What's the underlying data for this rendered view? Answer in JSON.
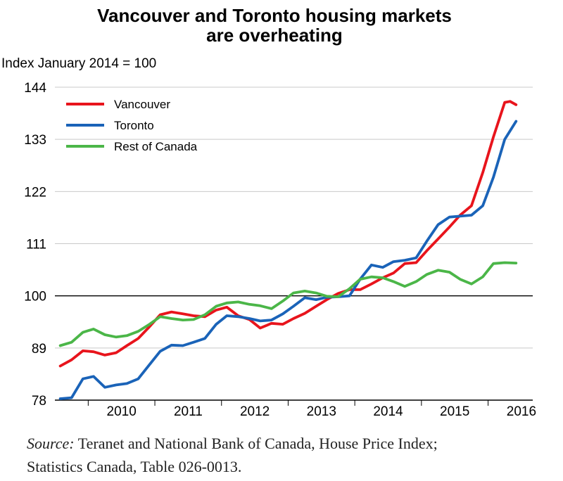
{
  "chart_data": {
    "type": "line",
    "title_line1": "Vancouver and Toronto housing markets",
    "title_line2": "are overheating",
    "ylabel": "Index January 2014 = 100",
    "xlabel": "",
    "ylim": [
      78,
      144
    ],
    "yticks": [
      "144",
      "133",
      "122",
      "111",
      "100",
      "89",
      "78"
    ],
    "xticks": [
      "2010",
      "2011",
      "2012",
      "2013",
      "2014",
      "2015",
      "2016"
    ],
    "grid": true,
    "reference_line": 100,
    "legend_position": "top-left",
    "series": [
      {
        "name": "Vancouver",
        "color": "#e8141c",
        "points": [
          [
            2009.58,
            85.2
          ],
          [
            2009.75,
            86.5
          ],
          [
            2009.92,
            88.4
          ],
          [
            2010.08,
            88.2
          ],
          [
            2010.25,
            87.5
          ],
          [
            2010.42,
            88.0
          ],
          [
            2010.58,
            89.5
          ],
          [
            2010.75,
            91.0
          ],
          [
            2010.92,
            93.5
          ],
          [
            2011.08,
            96.0
          ],
          [
            2011.25,
            96.6
          ],
          [
            2011.42,
            96.2
          ],
          [
            2011.58,
            95.8
          ],
          [
            2011.75,
            95.6
          ],
          [
            2011.92,
            97.0
          ],
          [
            2012.08,
            97.6
          ],
          [
            2012.25,
            95.8
          ],
          [
            2012.42,
            95.0
          ],
          [
            2012.58,
            93.2
          ],
          [
            2012.75,
            94.2
          ],
          [
            2012.92,
            94.0
          ],
          [
            2013.08,
            95.2
          ],
          [
            2013.25,
            96.3
          ],
          [
            2013.42,
            97.8
          ],
          [
            2013.58,
            99.2
          ],
          [
            2013.75,
            100.5
          ],
          [
            2013.92,
            101.3
          ],
          [
            2014.08,
            101.3
          ],
          [
            2014.25,
            102.5
          ],
          [
            2014.42,
            103.8
          ],
          [
            2014.58,
            104.8
          ],
          [
            2014.75,
            106.8
          ],
          [
            2014.92,
            107.0
          ],
          [
            2015.08,
            109.5
          ],
          [
            2015.25,
            112.0
          ],
          [
            2015.42,
            114.5
          ],
          [
            2015.58,
            117.0
          ],
          [
            2015.75,
            119.0
          ],
          [
            2015.92,
            126.0
          ],
          [
            2016.08,
            133.5
          ],
          [
            2016.25,
            140.8
          ],
          [
            2016.33,
            141.0
          ],
          [
            2016.42,
            140.3
          ]
        ]
      },
      {
        "name": "Toronto",
        "color": "#1a63b8",
        "points": [
          [
            2009.58,
            78.3
          ],
          [
            2009.75,
            78.5
          ],
          [
            2009.92,
            82.5
          ],
          [
            2010.08,
            83.0
          ],
          [
            2010.25,
            80.7
          ],
          [
            2010.42,
            81.2
          ],
          [
            2010.58,
            81.5
          ],
          [
            2010.75,
            82.5
          ],
          [
            2010.92,
            85.5
          ],
          [
            2011.08,
            88.3
          ],
          [
            2011.25,
            89.6
          ],
          [
            2011.42,
            89.5
          ],
          [
            2011.58,
            90.2
          ],
          [
            2011.75,
            91.0
          ],
          [
            2011.92,
            94.0
          ],
          [
            2012.08,
            95.8
          ],
          [
            2012.25,
            95.6
          ],
          [
            2012.42,
            95.2
          ],
          [
            2012.58,
            94.7
          ],
          [
            2012.75,
            94.9
          ],
          [
            2012.92,
            96.2
          ],
          [
            2013.08,
            97.8
          ],
          [
            2013.25,
            99.6
          ],
          [
            2013.42,
            99.2
          ],
          [
            2013.58,
            99.7
          ],
          [
            2013.75,
            99.8
          ],
          [
            2013.92,
            100.0
          ],
          [
            2014.08,
            103.5
          ],
          [
            2014.25,
            106.5
          ],
          [
            2014.42,
            106.0
          ],
          [
            2014.58,
            107.2
          ],
          [
            2014.75,
            107.5
          ],
          [
            2014.92,
            108.0
          ],
          [
            2015.08,
            111.5
          ],
          [
            2015.25,
            115.0
          ],
          [
            2015.42,
            116.6
          ],
          [
            2015.58,
            116.8
          ],
          [
            2015.75,
            117.0
          ],
          [
            2015.92,
            119.0
          ],
          [
            2016.08,
            125.0
          ],
          [
            2016.25,
            133.0
          ],
          [
            2016.42,
            136.8
          ]
        ]
      },
      {
        "name": "Rest of Canada",
        "color": "#4bb648",
        "points": [
          [
            2009.58,
            89.5
          ],
          [
            2009.75,
            90.2
          ],
          [
            2009.92,
            92.3
          ],
          [
            2010.08,
            93.0
          ],
          [
            2010.25,
            91.8
          ],
          [
            2010.42,
            91.3
          ],
          [
            2010.58,
            91.6
          ],
          [
            2010.75,
            92.5
          ],
          [
            2010.92,
            94.0
          ],
          [
            2011.08,
            95.6
          ],
          [
            2011.25,
            95.2
          ],
          [
            2011.42,
            94.9
          ],
          [
            2011.58,
            95.0
          ],
          [
            2011.75,
            96.0
          ],
          [
            2011.92,
            97.8
          ],
          [
            2012.08,
            98.5
          ],
          [
            2012.25,
            98.7
          ],
          [
            2012.42,
            98.2
          ],
          [
            2012.58,
            97.9
          ],
          [
            2012.75,
            97.3
          ],
          [
            2012.92,
            98.9
          ],
          [
            2013.08,
            100.6
          ],
          [
            2013.25,
            101.0
          ],
          [
            2013.42,
            100.6
          ],
          [
            2013.58,
            99.9
          ],
          [
            2013.75,
            99.8
          ],
          [
            2013.92,
            101.5
          ],
          [
            2014.08,
            103.5
          ],
          [
            2014.25,
            104.0
          ],
          [
            2014.42,
            103.8
          ],
          [
            2014.58,
            103.0
          ],
          [
            2014.75,
            102.0
          ],
          [
            2014.92,
            103.0
          ],
          [
            2015.08,
            104.5
          ],
          [
            2015.25,
            105.4
          ],
          [
            2015.42,
            105.0
          ],
          [
            2015.58,
            103.5
          ],
          [
            2015.75,
            102.5
          ],
          [
            2015.92,
            104.0
          ],
          [
            2016.08,
            106.8
          ],
          [
            2016.25,
            107.0
          ],
          [
            2016.42,
            106.9
          ]
        ]
      }
    ]
  },
  "source": {
    "label": "Source:",
    "line1_text": " Teranet and National Bank of Canada, House Price Index;",
    "line2_text": "Statistics Canada, Table 026-0013."
  }
}
